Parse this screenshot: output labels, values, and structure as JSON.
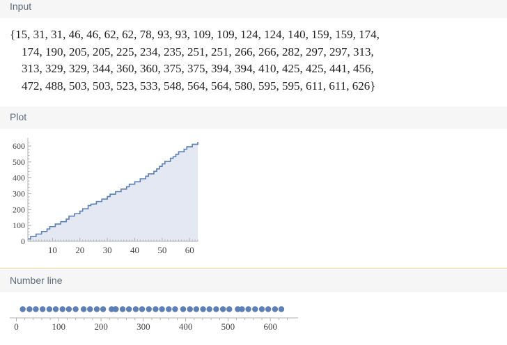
{
  "sections": {
    "input": {
      "title": "Input"
    },
    "plot": {
      "title": "Plot"
    },
    "numberline": {
      "title": "Number line"
    }
  },
  "input_lines": [
    "{15, 31, 31, 46, 46, 62, 62, 78, 93, 93, 109, 109, 124, 124, 140, 159, 159, 174,",
    "174, 190, 205, 205, 225, 234, 235, 251, 251, 266, 266, 282, 297, 297, 313,",
    "313, 329, 329, 344, 360, 360, 375, 375, 394, 394, 410, 425, 425, 441, 456,",
    "472, 488, 503, 503, 523, 533, 548, 564, 564, 580, 595, 595, 611, 611, 626}"
  ],
  "chart_data": [
    {
      "type": "area",
      "step": true,
      "values": [
        15,
        31,
        31,
        46,
        46,
        62,
        62,
        78,
        93,
        93,
        109,
        109,
        124,
        124,
        140,
        159,
        159,
        174,
        174,
        190,
        205,
        205,
        225,
        234,
        235,
        251,
        251,
        266,
        266,
        282,
        297,
        297,
        313,
        313,
        329,
        329,
        344,
        360,
        360,
        375,
        375,
        394,
        394,
        410,
        425,
        425,
        441,
        456,
        472,
        488,
        503,
        503,
        523,
        533,
        548,
        564,
        564,
        580,
        595,
        595,
        611,
        611,
        626
      ],
      "xticks": [
        10,
        20,
        30,
        40,
        50,
        60
      ],
      "yticks": [
        0,
        100,
        200,
        300,
        400,
        500,
        600
      ],
      "xlim": [
        1,
        63
      ],
      "ylim": [
        0,
        626
      ],
      "colors": {
        "line": "#5c7fb5",
        "fill": "#e3e8f3"
      }
    },
    {
      "type": "scatter",
      "values": [
        15,
        31,
        31,
        46,
        46,
        62,
        62,
        78,
        93,
        93,
        109,
        109,
        124,
        124,
        140,
        159,
        159,
        174,
        174,
        190,
        205,
        205,
        225,
        234,
        235,
        251,
        251,
        266,
        266,
        282,
        297,
        297,
        313,
        313,
        329,
        329,
        344,
        360,
        360,
        375,
        375,
        394,
        394,
        410,
        425,
        425,
        441,
        456,
        472,
        488,
        503,
        503,
        523,
        533,
        548,
        564,
        564,
        580,
        595,
        595,
        611,
        611,
        626
      ],
      "xticks": [
        0,
        100,
        200,
        300,
        400,
        500,
        600
      ],
      "xlim": [
        0,
        626
      ],
      "colors": {
        "point": "#5c7fb5"
      }
    }
  ]
}
